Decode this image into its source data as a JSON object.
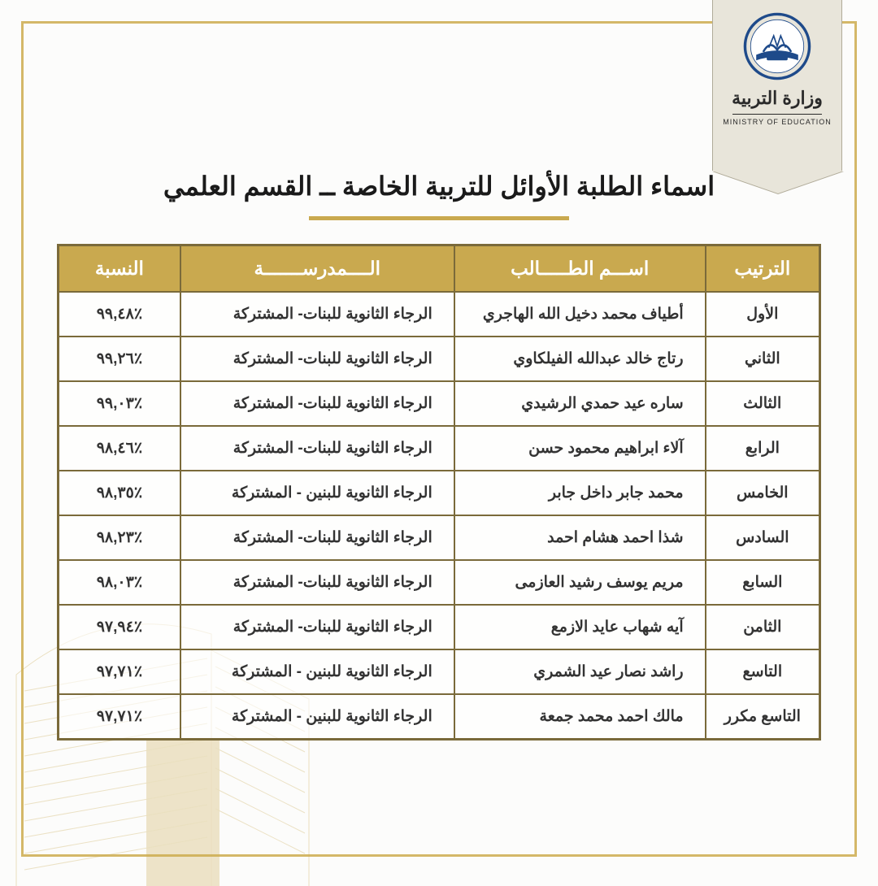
{
  "colors": {
    "gold": "#c9a94f",
    "gold_light": "#d4b868",
    "border_dark": "#7a6a3a",
    "text_dark": "#333333",
    "bg_page": "#fcfcfb",
    "bg_ribbon": "#e8e5da",
    "ribbon_border": "#b0ab99"
  },
  "ribbon": {
    "ministry_ar": "وزارة التربية",
    "ministry_en": "MINISTRY OF EDUCATION"
  },
  "title": "اسماء الطلبة الأوائل للتربية الخاصة ــ القسم العلمي",
  "table": {
    "type": "table",
    "headers": {
      "rank": "الترتيب",
      "name": "اســـم الطـــــالب",
      "school": "الــــمدرســـــــة",
      "pct": "النسبة"
    },
    "column_widths_pct": [
      15,
      33,
      36,
      16
    ],
    "header_bg": "#c9a94f",
    "header_color": "#ffffff",
    "header_fontsize": 23,
    "cell_fontsize": 19,
    "border_color": "#7a6a3a",
    "rows": [
      {
        "rank": "الأول",
        "name": "أطياف محمد دخيل الله الهاجري",
        "school": "الرجاء الثانوية للبنات- المشتركة",
        "pct": "٪٩٩,٤٨"
      },
      {
        "rank": "الثاني",
        "name": "رتاج خالد عبدالله الفيلكاوي",
        "school": "الرجاء الثانوية للبنات- المشتركة",
        "pct": "٪٩٩,٢٦"
      },
      {
        "rank": "الثالث",
        "name": "ساره عيد حمدي الرشيدي",
        "school": "الرجاء الثانوية للبنات- المشتركة",
        "pct": "٪٩٩,٠٣"
      },
      {
        "rank": "الرابع",
        "name": "آلاء ابراهيم محمود حسن",
        "school": "الرجاء الثانوية للبنات- المشتركة",
        "pct": "٪٩٨,٤٦"
      },
      {
        "rank": "الخامس",
        "name": "محمد جابر داخل جابر",
        "school": "الرجاء الثانوية للبنين - المشتركة",
        "pct": "٪٩٨,٣٥"
      },
      {
        "rank": "السادس",
        "name": "شذا احمد هشام احمد",
        "school": "الرجاء الثانوية للبنات- المشتركة",
        "pct": "٪٩٨,٢٣"
      },
      {
        "rank": "السابع",
        "name": "مريم يوسف رشيد العازمى",
        "school": "الرجاء الثانوية للبنات- المشتركة",
        "pct": "٪٩٨,٠٣"
      },
      {
        "rank": "الثامن",
        "name": "آيه شهاب عايد الازمع",
        "school": "الرجاء الثانوية للبنات- المشتركة",
        "pct": "٪٩٧,٩٤"
      },
      {
        "rank": "التاسع",
        "name": "راشد نصار عيد الشمري",
        "school": "الرجاء الثانوية للبنين - المشتركة",
        "pct": "٪٩٧,٧١"
      },
      {
        "rank": "التاسع مكرر",
        "name": "مالك احمد محمد جمعة",
        "school": "الرجاء الثانوية للبنين - المشتركة",
        "pct": "٪٩٧,٧١"
      }
    ]
  }
}
